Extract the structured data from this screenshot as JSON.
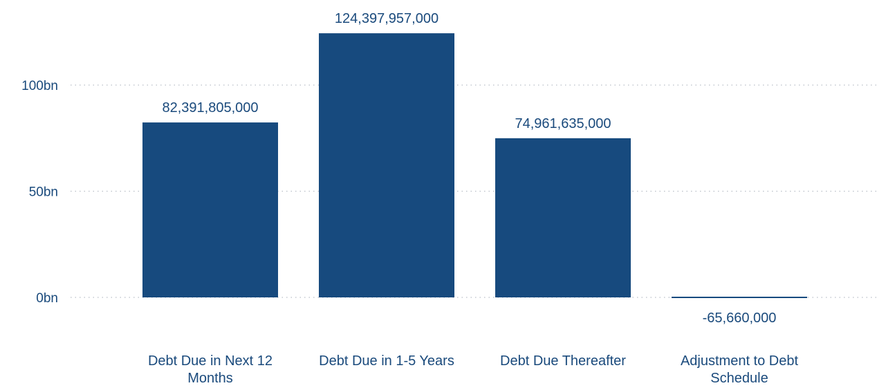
{
  "chart_data": {
    "type": "bar",
    "categories": [
      "Debt Due in Next 12 Months",
      "Debt Due in 1-5 Years",
      "Debt Due Thereafter",
      "Adjustment to Debt Schedule"
    ],
    "category_label_lines": [
      [
        "Debt Due in Next 12",
        "Months"
      ],
      [
        "Debt Due in 1-5 Years"
      ],
      [
        "Debt Due Thereafter"
      ],
      [
        "Adjustment to Debt",
        "Schedule"
      ]
    ],
    "values": [
      82391805000,
      124397957000,
      74961635000,
      -65660000
    ],
    "data_labels": [
      "82,391,805,000",
      "124,397,957,000",
      "74,961,635,000",
      "-65,660,000"
    ],
    "y_ticks": [
      {
        "value": 0,
        "label": "0bn"
      },
      {
        "value": 50000000000,
        "label": "50bn"
      },
      {
        "value": 100000000000,
        "label": "100bn"
      }
    ],
    "ylim": [
      0,
      130000000000
    ],
    "grid": true,
    "colors": {
      "bar": "#174a7e",
      "text": "#1a4a7c",
      "grid": "#b8bec6"
    },
    "title": "",
    "xlabel": "",
    "ylabel": ""
  }
}
